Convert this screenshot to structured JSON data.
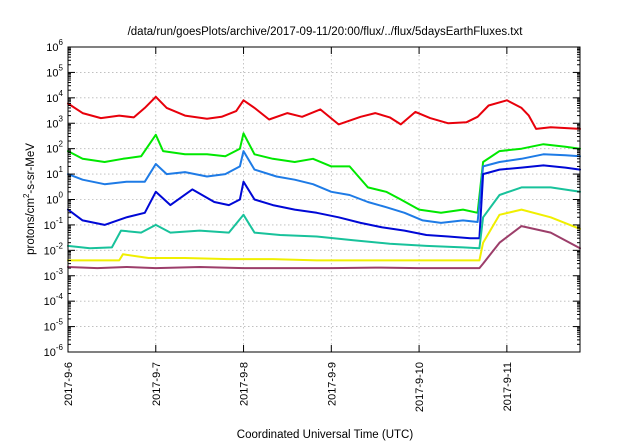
{
  "chart_data": {
    "type": "line",
    "title": "/data/run/goesPlots/archive/2017-09-11/20:00/flux/../flux/5daysEarthFluxes.txt",
    "xlabel": "Coordinated Universal Time (UTC)",
    "ylabel": "protons/cm2-s-sr-MeV",
    "ylabel_parts": {
      "before": "protons/cm",
      "sup": "2",
      "after": "-s-sr-MeV"
    },
    "xscale": "time",
    "yscale": "log",
    "xlim": [
      "2017-09-06T00:00",
      "2017-09-11T20:00"
    ],
    "ylim": [
      1e-06,
      1000000.0
    ],
    "x_ticks": [
      "2017-9-6",
      "2017-9-7",
      "2017-9-8",
      "2017-9-9",
      "2017-9-10",
      "2017-9-11"
    ],
    "y_ticks": [
      -6,
      -5,
      -4,
      -3,
      -2,
      -1,
      0,
      1,
      2,
      3,
      4,
      5,
      6
    ],
    "grid": true,
    "legend": "none",
    "series": [
      {
        "color": "#e8000b",
        "points": [
          [
            "2017-09-06T00:00",
            6000
          ],
          [
            "2017-09-06T04:00",
            2500
          ],
          [
            "2017-09-06T09:00",
            1600
          ],
          [
            "2017-09-06T14:00",
            2000
          ],
          [
            "2017-09-06T18:00",
            1700
          ],
          [
            "2017-09-06T21:00",
            4000
          ],
          [
            "2017-09-07T00:00",
            11000
          ],
          [
            "2017-09-07T03:00",
            4000
          ],
          [
            "2017-09-07T08:00",
            2000
          ],
          [
            "2017-09-07T14:00",
            1500
          ],
          [
            "2017-09-07T18:00",
            1800
          ],
          [
            "2017-09-07T22:00",
            3000
          ],
          [
            "2017-09-08T00:00",
            8000
          ],
          [
            "2017-09-08T03:00",
            4000
          ],
          [
            "2017-09-08T07:00",
            1400
          ],
          [
            "2017-09-08T12:00",
            2500
          ],
          [
            "2017-09-08T16:00",
            1800
          ],
          [
            "2017-09-08T21:00",
            3500
          ],
          [
            "2017-09-09T02:00",
            900
          ],
          [
            "2017-09-09T08:00",
            1800
          ],
          [
            "2017-09-09T12:00",
            2500
          ],
          [
            "2017-09-09T16:00",
            1700
          ],
          [
            "2017-09-09T19:00",
            900
          ],
          [
            "2017-09-09T23:00",
            2800
          ],
          [
            "2017-09-10T03:00",
            1600
          ],
          [
            "2017-09-10T08:00",
            1000
          ],
          [
            "2017-09-10T13:00",
            1100
          ],
          [
            "2017-09-10T16:00",
            1800
          ],
          [
            "2017-09-10T19:00",
            5000
          ],
          [
            "2017-09-11T00:00",
            8000
          ],
          [
            "2017-09-11T04:00",
            4000
          ],
          [
            "2017-09-11T06:00",
            2000
          ],
          [
            "2017-09-11T08:00",
            600
          ],
          [
            "2017-09-11T12:00",
            700
          ],
          [
            "2017-09-11T20:00",
            600
          ]
        ]
      },
      {
        "color": "#00e800",
        "points": [
          [
            "2017-09-06T00:00",
            80
          ],
          [
            "2017-09-06T04:00",
            40
          ],
          [
            "2017-09-06T10:00",
            30
          ],
          [
            "2017-09-06T15:00",
            40
          ],
          [
            "2017-09-06T20:00",
            50
          ],
          [
            "2017-09-07T00:00",
            350
          ],
          [
            "2017-09-07T02:00",
            80
          ],
          [
            "2017-09-07T08:00",
            60
          ],
          [
            "2017-09-07T14:00",
            60
          ],
          [
            "2017-09-07T19:00",
            50
          ],
          [
            "2017-09-07T23:00",
            100
          ],
          [
            "2017-09-08T00:00",
            400
          ],
          [
            "2017-09-08T03:00",
            60
          ],
          [
            "2017-09-08T08:00",
            40
          ],
          [
            "2017-09-08T14:00",
            30
          ],
          [
            "2017-09-08T19:00",
            40
          ],
          [
            "2017-09-09T00:00",
            20
          ],
          [
            "2017-09-09T05:00",
            20
          ],
          [
            "2017-09-09T10:00",
            3
          ],
          [
            "2017-09-09T15:00",
            2
          ],
          [
            "2017-09-09T19:00",
            1
          ],
          [
            "2017-09-10T00:00",
            0.4
          ],
          [
            "2017-09-10T06:00",
            0.3
          ],
          [
            "2017-09-10T12:00",
            0.4
          ],
          [
            "2017-09-10T16:00",
            0.3
          ],
          [
            "2017-09-10T17:30",
            30
          ],
          [
            "2017-09-10T22:00",
            80
          ],
          [
            "2017-09-11T04:00",
            100
          ],
          [
            "2017-09-11T10:00",
            150
          ],
          [
            "2017-09-11T16:00",
            120
          ],
          [
            "2017-09-11T20:00",
            100
          ]
        ]
      },
      {
        "color": "#1e7be6",
        "points": [
          [
            "2017-09-06T00:00",
            10
          ],
          [
            "2017-09-06T04:00",
            6
          ],
          [
            "2017-09-06T10:00",
            4
          ],
          [
            "2017-09-06T16:00",
            5
          ],
          [
            "2017-09-06T21:00",
            5
          ],
          [
            "2017-09-07T00:00",
            25
          ],
          [
            "2017-09-07T03:00",
            10
          ],
          [
            "2017-09-07T08:00",
            12
          ],
          [
            "2017-09-07T14:00",
            8
          ],
          [
            "2017-09-07T19:00",
            10
          ],
          [
            "2017-09-07T23:00",
            20
          ],
          [
            "2017-09-08T00:00",
            80
          ],
          [
            "2017-09-08T03:00",
            15
          ],
          [
            "2017-09-08T09:00",
            8
          ],
          [
            "2017-09-08T14:00",
            6
          ],
          [
            "2017-09-08T19:00",
            4
          ],
          [
            "2017-09-09T00:00",
            2
          ],
          [
            "2017-09-09T05:00",
            1.5
          ],
          [
            "2017-09-09T10:00",
            0.8
          ],
          [
            "2017-09-09T15:00",
            0.5
          ],
          [
            "2017-09-09T20:00",
            0.3
          ],
          [
            "2017-09-10T01:00",
            0.15
          ],
          [
            "2017-09-10T06:00",
            0.12
          ],
          [
            "2017-09-10T12:00",
            0.15
          ],
          [
            "2017-09-10T16:00",
            0.13
          ],
          [
            "2017-09-10T17:30",
            20
          ],
          [
            "2017-09-10T22:00",
            30
          ],
          [
            "2017-09-11T04:00",
            40
          ],
          [
            "2017-09-11T10:00",
            60
          ],
          [
            "2017-09-11T16:00",
            55
          ],
          [
            "2017-09-11T20:00",
            50
          ]
        ]
      },
      {
        "color": "#0008d6",
        "points": [
          [
            "2017-09-06T00:00",
            0.4
          ],
          [
            "2017-09-06T04:00",
            0.15
          ],
          [
            "2017-09-06T10:00",
            0.1
          ],
          [
            "2017-09-06T16:00",
            0.2
          ],
          [
            "2017-09-06T21:00",
            0.3
          ],
          [
            "2017-09-07T00:00",
            2
          ],
          [
            "2017-09-07T04:00",
            0.6
          ],
          [
            "2017-09-07T10:00",
            2.5
          ],
          [
            "2017-09-07T16:00",
            0.8
          ],
          [
            "2017-09-07T20:00",
            0.6
          ],
          [
            "2017-09-07T23:00",
            1
          ],
          [
            "2017-09-08T00:00",
            5
          ],
          [
            "2017-09-08T03:00",
            1
          ],
          [
            "2017-09-08T08:00",
            0.6
          ],
          [
            "2017-09-08T14:00",
            0.4
          ],
          [
            "2017-09-08T20:00",
            0.3
          ],
          [
            "2017-09-09T02:00",
            0.2
          ],
          [
            "2017-09-09T08:00",
            0.12
          ],
          [
            "2017-09-09T14:00",
            0.08
          ],
          [
            "2017-09-09T20:00",
            0.06
          ],
          [
            "2017-09-10T02:00",
            0.04
          ],
          [
            "2017-09-10T08:00",
            0.035
          ],
          [
            "2017-09-10T14:00",
            0.03
          ],
          [
            "2017-09-10T16:30",
            0.03
          ],
          [
            "2017-09-10T17:30",
            10
          ],
          [
            "2017-09-10T22:00",
            15
          ],
          [
            "2017-09-11T04:00",
            18
          ],
          [
            "2017-09-11T10:00",
            22
          ],
          [
            "2017-09-11T16:00",
            18
          ],
          [
            "2017-09-11T20:00",
            15
          ]
        ]
      },
      {
        "color": "#18c29b",
        "points": [
          [
            "2017-09-06T00:00",
            0.015
          ],
          [
            "2017-09-06T06:00",
            0.012
          ],
          [
            "2017-09-06T12:00",
            0.013
          ],
          [
            "2017-09-06T14:30",
            0.06
          ],
          [
            "2017-09-06T20:00",
            0.05
          ],
          [
            "2017-09-07T00:00",
            0.1
          ],
          [
            "2017-09-07T04:00",
            0.05
          ],
          [
            "2017-09-07T12:00",
            0.06
          ],
          [
            "2017-09-07T20:00",
            0.05
          ],
          [
            "2017-09-08T00:00",
            0.25
          ],
          [
            "2017-09-08T03:00",
            0.05
          ],
          [
            "2017-09-08T10:00",
            0.04
          ],
          [
            "2017-09-08T20:00",
            0.035
          ],
          [
            "2017-09-09T06:00",
            0.025
          ],
          [
            "2017-09-09T16:00",
            0.018
          ],
          [
            "2017-09-10T02:00",
            0.015
          ],
          [
            "2017-09-10T12:00",
            0.013
          ],
          [
            "2017-09-10T16:30",
            0.012
          ],
          [
            "2017-09-10T17:30",
            0.2
          ],
          [
            "2017-09-10T22:00",
            1.5
          ],
          [
            "2017-09-11T04:00",
            3
          ],
          [
            "2017-09-11T12:00",
            3
          ],
          [
            "2017-09-11T20:00",
            2
          ]
        ]
      },
      {
        "color": "#f0ef00",
        "points": [
          [
            "2017-09-06T00:00",
            0.004
          ],
          [
            "2017-09-06T08:00",
            0.004
          ],
          [
            "2017-09-06T14:00",
            0.004
          ],
          [
            "2017-09-06T15:00",
            0.007
          ],
          [
            "2017-09-06T22:00",
            0.005
          ],
          [
            "2017-09-07T08:00",
            0.005
          ],
          [
            "2017-09-07T20:00",
            0.0045
          ],
          [
            "2017-09-08T08:00",
            0.0045
          ],
          [
            "2017-09-08T20:00",
            0.004
          ],
          [
            "2017-09-09T08:00",
            0.004
          ],
          [
            "2017-09-09T20:00",
            0.004
          ],
          [
            "2017-09-10T08:00",
            0.004
          ],
          [
            "2017-09-10T16:30",
            0.004
          ],
          [
            "2017-09-10T17:30",
            0.02
          ],
          [
            "2017-09-10T22:00",
            0.25
          ],
          [
            "2017-09-11T04:00",
            0.4
          ],
          [
            "2017-09-11T12:00",
            0.2
          ],
          [
            "2017-09-11T20:00",
            0.07
          ]
        ]
      },
      {
        "color": "#9c3e6a",
        "points": [
          [
            "2017-09-06T00:00",
            0.0022
          ],
          [
            "2017-09-06T08:00",
            0.002
          ],
          [
            "2017-09-06T16:00",
            0.0022
          ],
          [
            "2017-09-07T00:00",
            0.002
          ],
          [
            "2017-09-07T12:00",
            0.0022
          ],
          [
            "2017-09-08T00:00",
            0.002
          ],
          [
            "2017-09-08T12:00",
            0.002
          ],
          [
            "2017-09-09T00:00",
            0.002
          ],
          [
            "2017-09-09T12:00",
            0.0021
          ],
          [
            "2017-09-10T00:00",
            0.002
          ],
          [
            "2017-09-10T12:00",
            0.002
          ],
          [
            "2017-09-10T16:30",
            0.002
          ],
          [
            "2017-09-10T17:30",
            0.003
          ],
          [
            "2017-09-10T22:00",
            0.02
          ],
          [
            "2017-09-11T04:00",
            0.09
          ],
          [
            "2017-09-11T12:00",
            0.05
          ],
          [
            "2017-09-11T20:00",
            0.012
          ]
        ]
      }
    ]
  }
}
